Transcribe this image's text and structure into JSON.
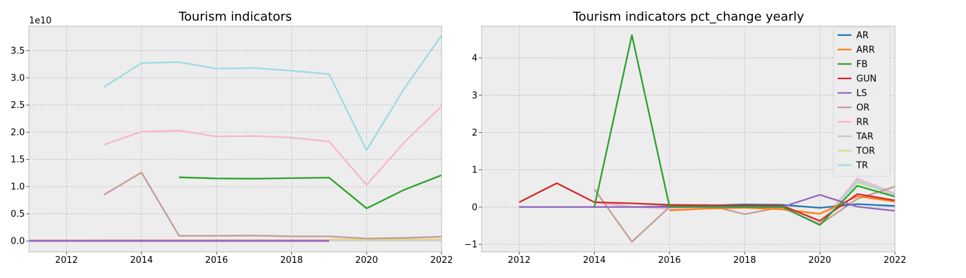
{
  "colors": {
    "AR": "#1f77b4",
    "ARR": "#ff7f0e",
    "FB": "#2ca02c",
    "GUN": "#d62728",
    "LS": "#9467bd",
    "OR": "#c49c94",
    "RR": "#f7b6d2",
    "TAR": "#c7c7c7",
    "TOR": "#dbdb8d",
    "TR": "#9edae5",
    "axes_bg": "#ededed",
    "grid": "#b0b0b0",
    "spine": "#bcbcbc"
  },
  "chart_data": [
    {
      "type": "line",
      "title": "Tourism indicators",
      "xlabel": "",
      "ylabel": "",
      "offset_text": "1e10",
      "xlim": [
        2011,
        2022
      ],
      "ylim": [
        -0.2,
        3.95
      ],
      "xticks": [
        2012,
        2014,
        2016,
        2018,
        2020,
        2022
      ],
      "yticks": [
        0.0,
        0.5,
        1.0,
        1.5,
        2.0,
        2.5,
        3.0,
        3.5
      ],
      "ytick_labels": [
        "0.0",
        "0.5",
        "1.0",
        "1.5",
        "2.0",
        "2.5",
        "3.0",
        "3.5"
      ],
      "grid": true,
      "legend": false,
      "series": [
        {
          "name": "AR",
          "x": [
            2011,
            2012,
            2013,
            2014,
            2015,
            2016,
            2017,
            2018,
            2019
          ],
          "y": [
            0.003,
            0.003,
            0.003,
            0.003,
            0.003,
            0.003,
            0.003,
            0.003,
            0.003
          ]
        },
        {
          "name": "ARR",
          "x": [
            2011,
            2012,
            2013,
            2014,
            2015,
            2016,
            2017,
            2018,
            2019
          ],
          "y": [
            0.004,
            0.004,
            0.004,
            0.004,
            0.004,
            0.004,
            0.004,
            0.004,
            0.004
          ]
        },
        {
          "name": "GUN",
          "x": [
            2011,
            2012,
            2013,
            2014,
            2015,
            2016,
            2017,
            2018,
            2019
          ],
          "y": [
            0.005,
            0.005,
            0.006,
            0.006,
            0.006,
            0.006,
            0.006,
            0.006,
            0.006
          ]
        },
        {
          "name": "LS",
          "x": [
            2011,
            2012,
            2013,
            2014,
            2015,
            2016,
            2017,
            2018,
            2019
          ],
          "y": [
            0.0,
            0.0,
            0.0,
            0.0,
            0.0,
            0.0,
            0.0,
            0.0,
            0.0
          ]
        },
        {
          "name": "TAR",
          "x": [
            2019,
            2020,
            2021,
            2022
          ],
          "y": [
            0.02,
            0.02,
            0.02,
            0.02
          ]
        },
        {
          "name": "TOR",
          "x": [
            2019,
            2020,
            2021,
            2022
          ],
          "y": [
            0.03,
            0.03,
            0.03,
            0.03
          ]
        },
        {
          "name": "OR",
          "x": [
            2013,
            2014,
            2015,
            2016,
            2017,
            2018,
            2019,
            2020,
            2021,
            2022
          ],
          "y": [
            0.85,
            1.26,
            0.095,
            0.095,
            0.1,
            0.085,
            0.085,
            0.045,
            0.055,
            0.08
          ]
        },
        {
          "name": "FB",
          "x": [
            2015,
            2016,
            2017,
            2018,
            2019,
            2020,
            2021,
            2022
          ],
          "y": [
            1.17,
            1.15,
            1.145,
            1.155,
            1.165,
            0.6,
            0.94,
            1.21
          ]
        },
        {
          "name": "RR",
          "x": [
            2013,
            2014,
            2015,
            2016,
            2017,
            2018,
            2019,
            2020,
            2021,
            2022
          ],
          "y": [
            1.77,
            2.01,
            2.03,
            1.92,
            1.93,
            1.9,
            1.83,
            1.03,
            1.81,
            2.48
          ]
        },
        {
          "name": "TR",
          "x": [
            2013,
            2014,
            2015,
            2016,
            2017,
            2018,
            2019,
            2020,
            2021,
            2022
          ],
          "y": [
            2.83,
            3.27,
            3.29,
            3.17,
            3.18,
            3.13,
            3.07,
            1.67,
            2.8,
            3.78
          ]
        }
      ]
    },
    {
      "type": "line",
      "title": "Tourism indicators pct_change yearly",
      "xlabel": "",
      "ylabel": "",
      "xlim": [
        2011,
        2022
      ],
      "ylim": [
        -1.2,
        4.85
      ],
      "xticks": [
        2012,
        2014,
        2016,
        2018,
        2020,
        2022
      ],
      "yticks": [
        -1,
        0,
        1,
        2,
        3,
        4
      ],
      "ytick_labels": [
        "−1",
        "0",
        "1",
        "2",
        "3",
        "4"
      ],
      "grid": true,
      "legend": "top-right",
      "legend_entries": [
        "AR",
        "ARR",
        "FB",
        "GUN",
        "LS",
        "OR",
        "RR",
        "TAR",
        "TOR",
        "TR"
      ],
      "series": [
        {
          "name": "TAR",
          "x": [
            2020,
            2021,
            2022
          ],
          "y": [
            -0.45,
            0.72,
            0.3
          ]
        },
        {
          "name": "TOR",
          "x": [
            2020,
            2021,
            2022
          ],
          "y": [
            -0.4,
            0.65,
            0.35
          ]
        },
        {
          "name": "TR",
          "x": [
            2014,
            2015,
            2016,
            2017,
            2018,
            2019,
            2020,
            2021,
            2022
          ],
          "y": [
            0.15,
            0.01,
            -0.04,
            0.0,
            -0.01,
            -0.02,
            -0.47,
            0.7,
            0.35
          ]
        },
        {
          "name": "RR",
          "x": [
            2014,
            2015,
            2016,
            2017,
            2018,
            2019,
            2020,
            2021,
            2022
          ],
          "y": [
            0.12,
            0.01,
            -0.05,
            0.01,
            -0.02,
            -0.04,
            -0.44,
            0.77,
            0.37
          ]
        },
        {
          "name": "OR",
          "x": [
            2014,
            2015,
            2016,
            2017,
            2018,
            2019,
            2020,
            2021,
            2022
          ],
          "y": [
            0.48,
            -0.93,
            0.0,
            0.06,
            -0.19,
            0.0,
            -0.47,
            0.22,
            0.55
          ]
        },
        {
          "name": "AR",
          "x": [
            2012,
            2013,
            2014,
            2015,
            2016,
            2017,
            2018,
            2019,
            2020,
            2021,
            2022
          ],
          "y": [
            0.0,
            0.0,
            0.0,
            0.0,
            0.02,
            0.04,
            0.07,
            0.06,
            -0.02,
            0.08,
            0.03
          ]
        },
        {
          "name": "ARR",
          "x": [
            2016,
            2017,
            2018,
            2019,
            2020,
            2021,
            2022
          ],
          "y": [
            -0.09,
            -0.04,
            -0.02,
            -0.06,
            -0.18,
            0.29,
            0.15
          ]
        },
        {
          "name": "GUN",
          "x": [
            2012,
            2013,
            2014,
            2015,
            2016,
            2017,
            2018,
            2019,
            2020,
            2021,
            2022
          ],
          "y": [
            0.13,
            0.64,
            0.13,
            0.1,
            0.06,
            0.05,
            0.04,
            0.04,
            -0.37,
            0.35,
            0.18
          ]
        },
        {
          "name": "LS",
          "x": [
            2012,
            2013,
            2014,
            2015,
            2016,
            2017,
            2018,
            2019,
            2020,
            2021,
            2022
          ],
          "y": [
            0.0,
            0.0,
            0.0,
            0.0,
            0.0,
            0.0,
            0.0,
            0.0,
            0.33,
            0.01,
            -0.1
          ]
        },
        {
          "name": "FB",
          "x": [
            2014,
            2015,
            2016,
            2017,
            2018,
            2019,
            2020,
            2021,
            2022
          ],
          "y": [
            0.0,
            4.61,
            0.01,
            0.02,
            0.01,
            0.01,
            -0.48,
            0.57,
            0.28
          ]
        }
      ]
    }
  ]
}
